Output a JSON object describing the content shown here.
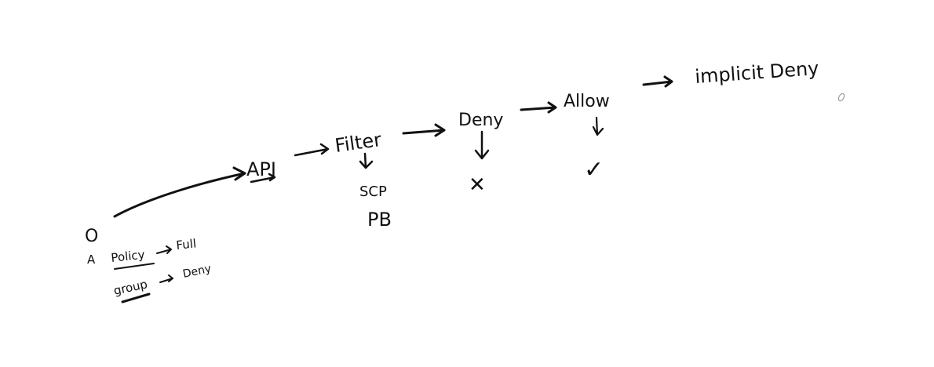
{
  "colors": {
    "ink": "#111111",
    "background": "#ffffff",
    "cursor": "#9a9a9a"
  },
  "nodes": {
    "user_symbol": "O",
    "user_sub": "A",
    "api": "API",
    "filter": "Filter",
    "deny": "Deny",
    "allow": "Allow",
    "implicit_deny": "implicit Deny",
    "scp": "SCP",
    "pb": "PB",
    "policy": "Policy",
    "full": "Full",
    "group": "group",
    "group_deny": "Deny"
  },
  "marks": {
    "deny_result": "✕",
    "allow_result": "✓"
  },
  "icons": {
    "cursor": "pen-cursor-icon"
  }
}
